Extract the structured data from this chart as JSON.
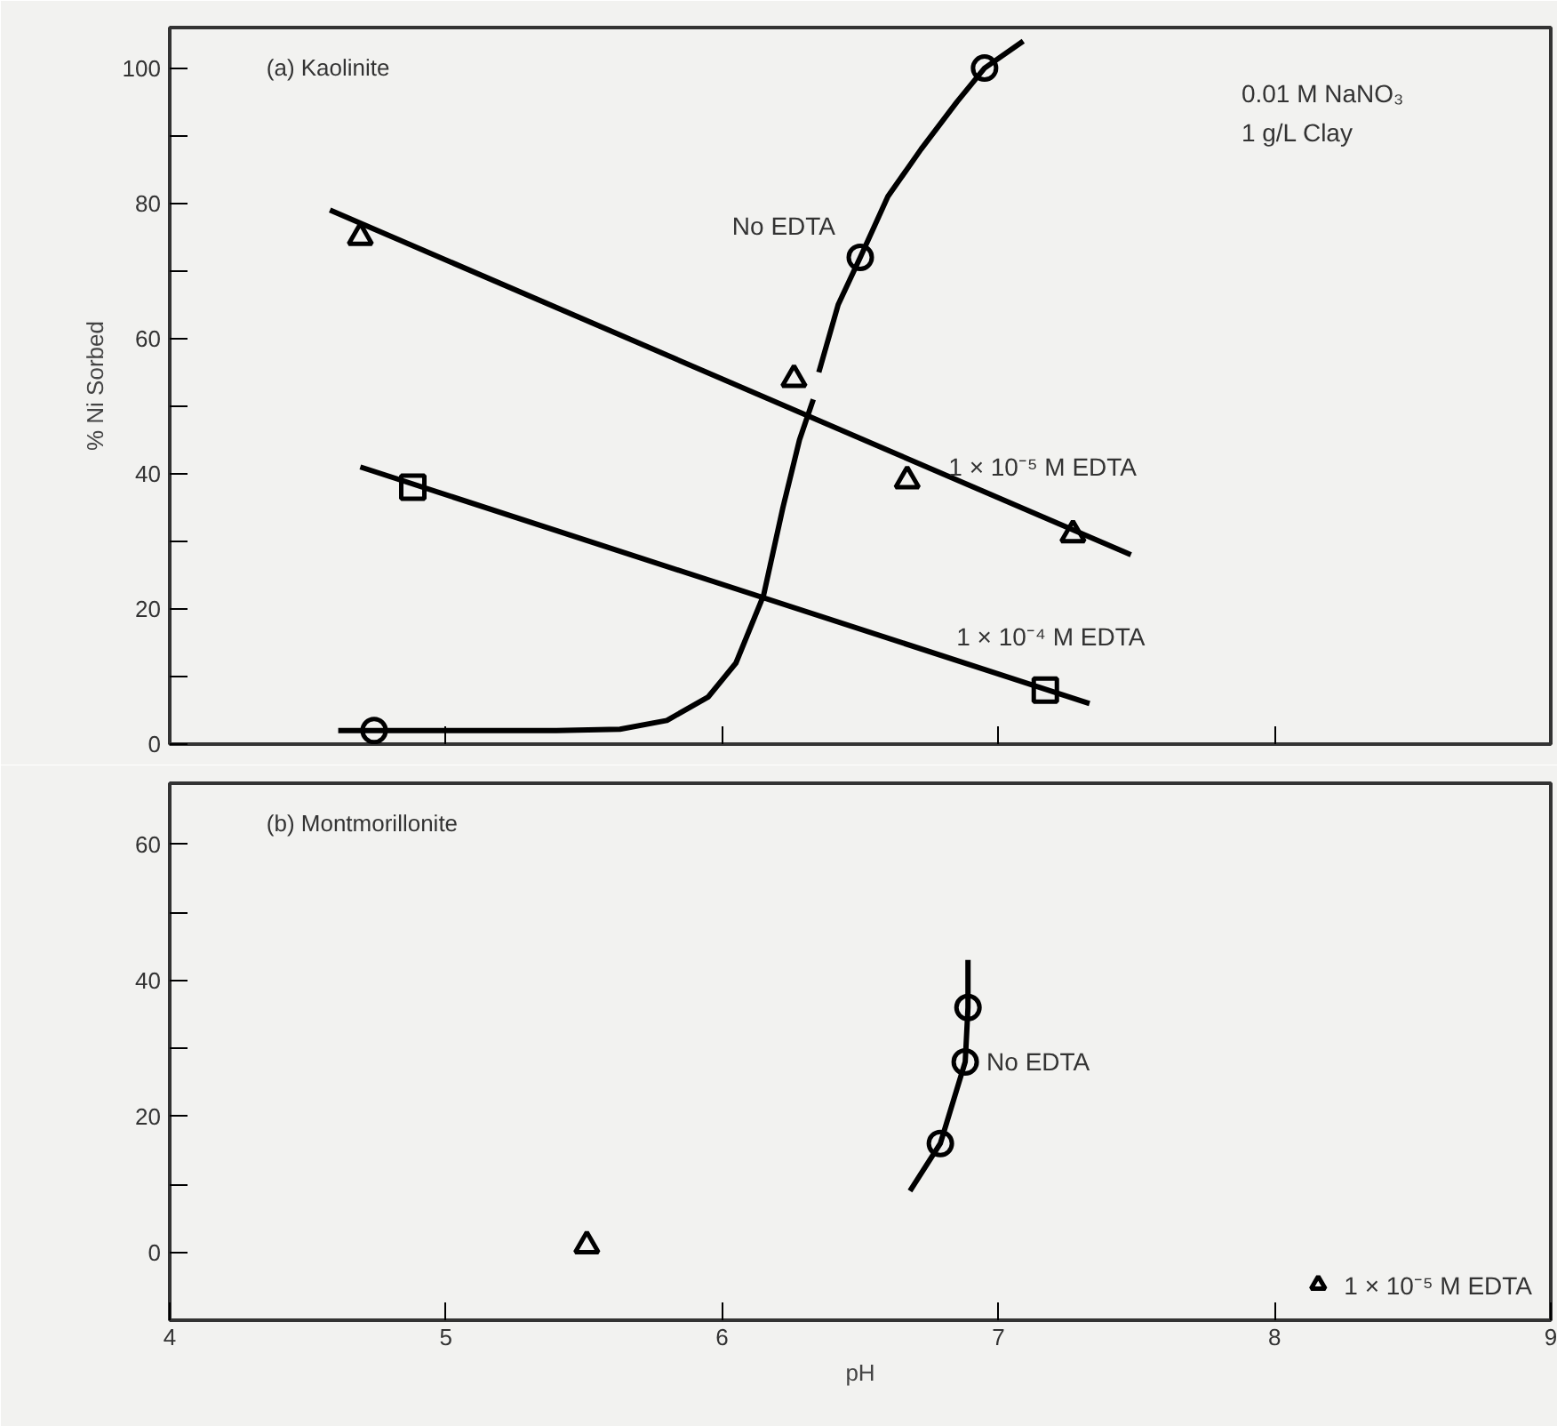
{
  "chart_data": [
    {
      "type": "scatter",
      "title": "(a) Kaolinite",
      "ylabel": "% Ni Sorbed",
      "xlim": [
        4,
        9
      ],
      "ylim": [
        0,
        106
      ],
      "xticks": [
        {
          "value": 5,
          "label": null
        },
        {
          "value": 6,
          "label": null
        },
        {
          "value": 7,
          "label": null
        },
        {
          "value": 8,
          "label": null
        }
      ],
      "yticks": [
        0,
        {
          "value": 10,
          "label": null
        },
        20,
        {
          "value": 30,
          "label": null
        },
        40,
        {
          "value": 50,
          "label": null
        },
        60,
        {
          "value": 70,
          "label": null
        },
        80,
        {
          "value": 90,
          "label": null
        },
        100
      ],
      "tick_labels": "y",
      "grid": false,
      "legend": false,
      "annotations": [
        "0.01 M NaNO₃",
        "1 g/L Clay"
      ],
      "series": [
        {
          "name": "No EDTA",
          "marker": "circle",
          "color": "#000000",
          "x": [
            4.74,
            6.5,
            6.95
          ],
          "values": [
            2,
            72,
            100
          ]
        },
        {
          "type": "line",
          "line_style": "solid",
          "color": "#000000",
          "x": [
            4.61,
            5.0,
            5.4,
            5.63,
            5.8,
            5.95,
            6.05,
            6.15,
            6.22,
            6.28,
            6.33,
            null,
            6.35,
            6.42,
            6.5,
            6.6,
            6.72,
            6.85,
            6.95,
            7.09
          ],
          "values": [
            2,
            2,
            2,
            2.2,
            3.5,
            7,
            12,
            22,
            35,
            45,
            51,
            null,
            55,
            65,
            72,
            81,
            88,
            95,
            100,
            104
          ]
        },
        {
          "name": "1 × 10⁻⁵ M EDTA",
          "marker": "triangle",
          "color": "#000000",
          "x": [
            4.69,
            6.26,
            6.67,
            7.27
          ],
          "values": [
            75,
            54,
            39,
            31
          ]
        },
        {
          "type": "line",
          "line_style": "solid",
          "color": "#000000",
          "x": [
            4.58,
            7.48
          ],
          "values": [
            79,
            28
          ]
        },
        {
          "name": "1 × 10⁻⁴ M EDTA",
          "marker": "square",
          "color": "#000000",
          "x": [
            4.88,
            7.17
          ],
          "values": [
            38,
            8
          ]
        },
        {
          "type": "line",
          "line_style": "solid",
          "color": "#000000",
          "x": [
            4.69,
            7.33
          ],
          "values": [
            41,
            6
          ]
        }
      ]
    },
    {
      "type": "scatter",
      "title": "(b) Montmorillonite",
      "xlabel": "pH",
      "xlim": [
        4,
        9
      ],
      "ylim": [
        -10,
        69
      ],
      "xticks": [
        4,
        5,
        6,
        7,
        8,
        9
      ],
      "yticks": [
        0,
        {
          "value": 10,
          "label": null
        },
        20,
        {
          "value": 30,
          "label": null
        },
        40,
        {
          "value": 50,
          "label": null
        },
        60
      ],
      "grid": false,
      "legend": "bottom right",
      "series": [
        {
          "name": "No EDTA",
          "marker": "circle",
          "color": "#000000",
          "x": [
            6.79,
            6.88,
            6.89
          ],
          "values": [
            16,
            28,
            36
          ]
        },
        {
          "type": "line",
          "line_style": "solid",
          "color": "#000000",
          "x": [
            6.68,
            6.79,
            6.88,
            6.89,
            6.89
          ],
          "values": [
            9,
            16,
            28,
            36,
            43
          ]
        },
        {
          "name": "1 × 10⁻⁵ M EDTA",
          "marker": "triangle",
          "color": "#000000",
          "x": [
            5.51
          ],
          "values": [
            1
          ]
        }
      ]
    }
  ]
}
